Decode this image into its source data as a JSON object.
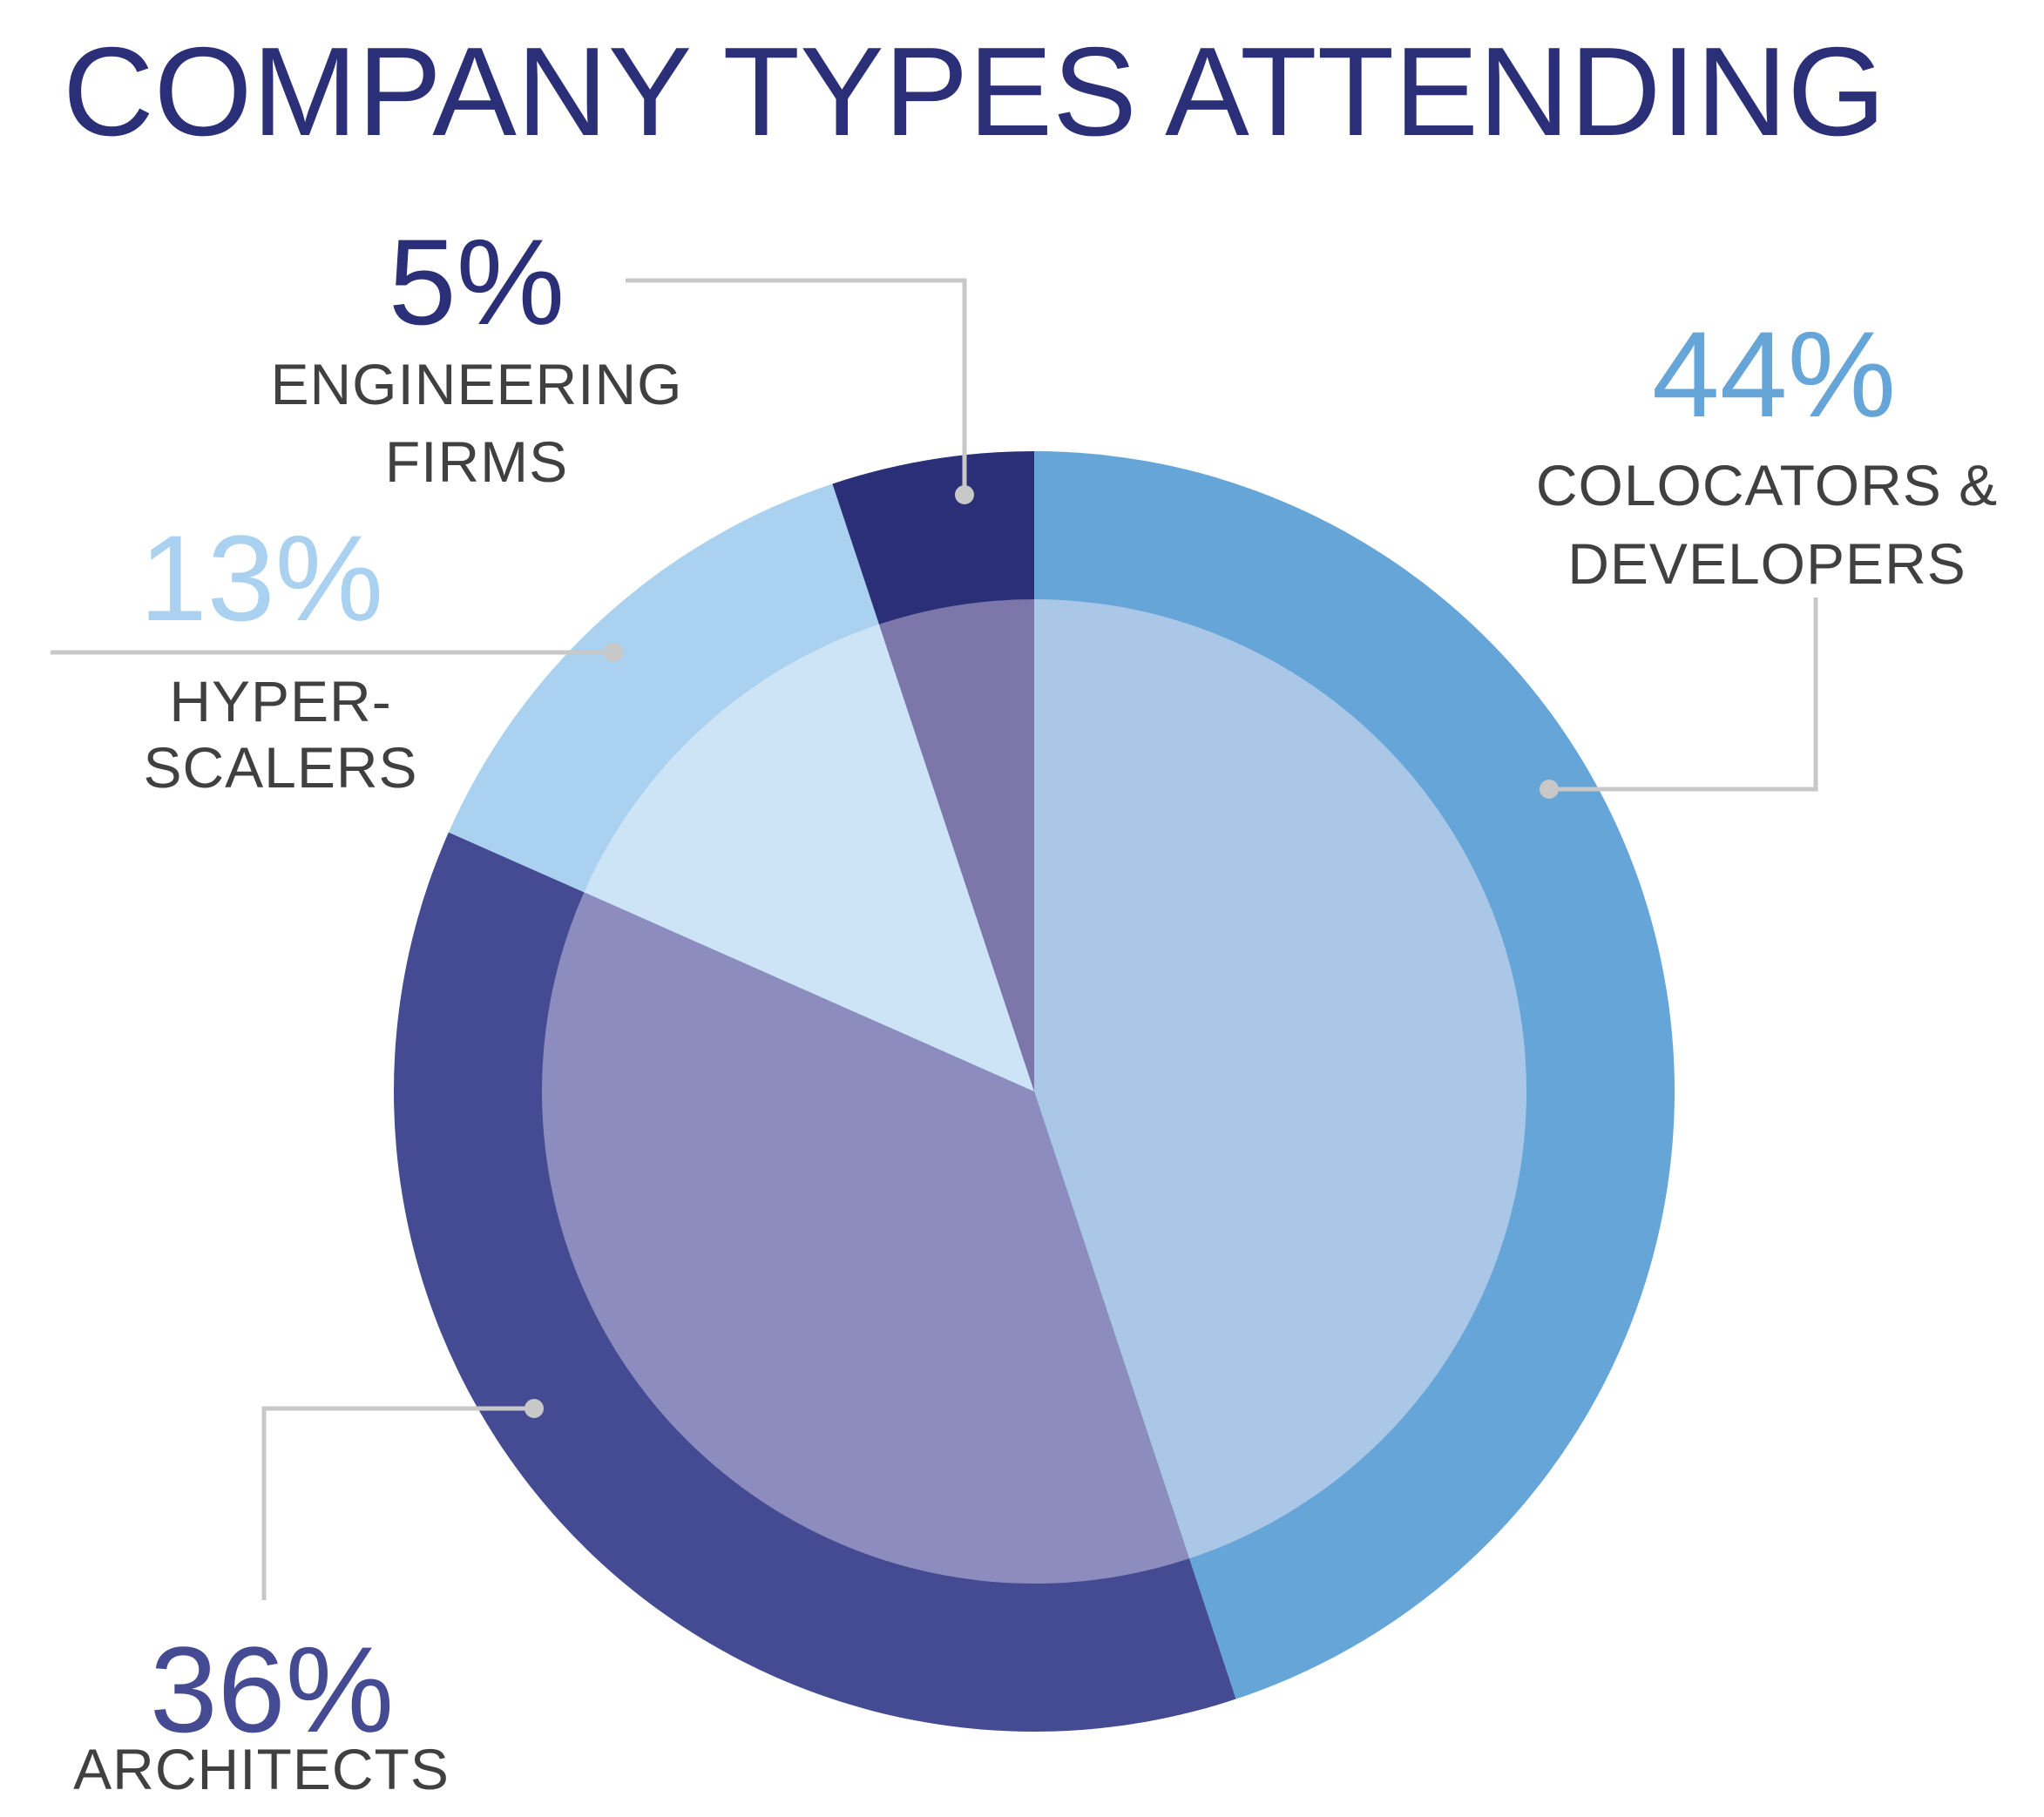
{
  "chart_data": {
    "type": "pie",
    "title": "COMPANY TYPES ATTENDING",
    "slices": [
      {
        "key": "colocators",
        "pct_label": "44%",
        "value": 44,
        "label_lines": [
          "COLOCATORS &",
          "DEVELOPERS"
        ],
        "outer_color": "#65a5d8",
        "inner_color": "#abc7e7",
        "pct_color": "#65a5d8"
      },
      {
        "key": "architects",
        "pct_label": "36%",
        "value": 36,
        "label_lines": [
          "ARCHITECTS"
        ],
        "outer_color": "#454b93",
        "inner_color": "#8c8dbe",
        "pct_color": "#454b93"
      },
      {
        "key": "hyperscalers",
        "pct_label": "13%",
        "value": 13,
        "label_lines": [
          "HYPER-",
          "SCALERS"
        ],
        "outer_color": "#abd1f0",
        "inner_color": "#cde4f7",
        "pct_color": "#abd1f0"
      },
      {
        "key": "engineering",
        "pct_label": "5%",
        "value": 5,
        "label_lines": [
          "ENGINEERING",
          "FIRMS"
        ],
        "outer_color": "#2b2f78",
        "inner_color": "#7c76aa",
        "pct_color": "#2b2f78"
      }
    ],
    "legend": "none (labels with leader lines)",
    "leader_color": "#c8c8c8",
    "label_text_color": "#404040"
  }
}
